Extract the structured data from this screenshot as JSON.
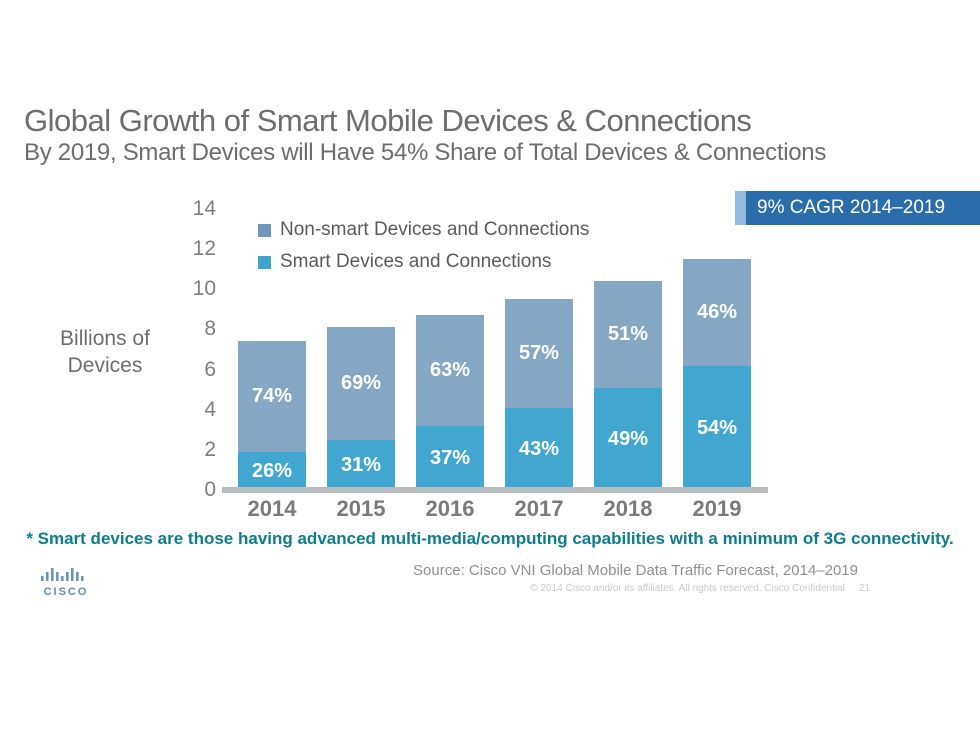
{
  "slide": {
    "title": "Global Growth of Smart Mobile Devices & Connections",
    "subtitle": "By 2019, Smart Devices will Have 54% Share of Total Devices & Connections",
    "cagr_badge_label": "9% CAGR 2014–2019",
    "footnote": "* Smart devices are those having advanced multi-media/computing capabilities with a minimum of 3G connectivity.",
    "source": "Source: Cisco VNI Global Mobile Data Traffic Forecast, 2014–2019",
    "copyright": "© 2014  Cisco and/or its affiliates. All rights reserved.    Cisco Confidential",
    "page_number": "21",
    "logo_text": "CISCO"
  },
  "colors": {
    "smart_blue": "#41a7d1",
    "non_smart_blue": "#84a7c5",
    "badge_blue": "#2b6cab",
    "badge_strip_blue": "#92bade",
    "footnote_teal": "#0d7d8d",
    "baseline_gray": "#b9bcbe",
    "logo_blue": "#5f8cb0"
  },
  "chart_data": {
    "type": "stacked-bar",
    "title": "Global Growth of Smart Mobile Devices & Connections",
    "categories": [
      "2014",
      "2015",
      "2016",
      "2017",
      "2018",
      "2019"
    ],
    "series": [
      {
        "name": "Smart Devices and Connections",
        "color": "#41a7d1",
        "values_billions": [
          1.9,
          2.5,
          3.2,
          4.1,
          5.1,
          6.2
        ],
        "share_labels": [
          "26%",
          "31%",
          "37%",
          "43%",
          "49%",
          "54%"
        ]
      },
      {
        "name": "Non-smart Devices and Connections",
        "color": "#84a7c5",
        "values_billions": [
          5.5,
          5.6,
          5.5,
          5.4,
          5.3,
          5.3
        ],
        "share_labels": [
          "74%",
          "69%",
          "63%",
          "57%",
          "51%",
          "46%"
        ]
      }
    ],
    "totals_billions": [
      7.4,
      8.1,
      8.7,
      9.5,
      10.4,
      11.5
    ],
    "legend": [
      {
        "label": "Non-smart Devices and Connections",
        "color": "#6d97bd"
      },
      {
        "label": "Smart Devices and Connections",
        "color": "#3fa5ce"
      }
    ],
    "ylabel_lines": [
      "Billions of",
      "Devices"
    ],
    "yticks": [
      0,
      2,
      4,
      6,
      8,
      10,
      12,
      14
    ],
    "ylim": [
      0,
      14
    ],
    "xlabel": "",
    "grid": false,
    "legend_position": "inside-top-left",
    "annotation": "9% CAGR 2014–2019"
  }
}
